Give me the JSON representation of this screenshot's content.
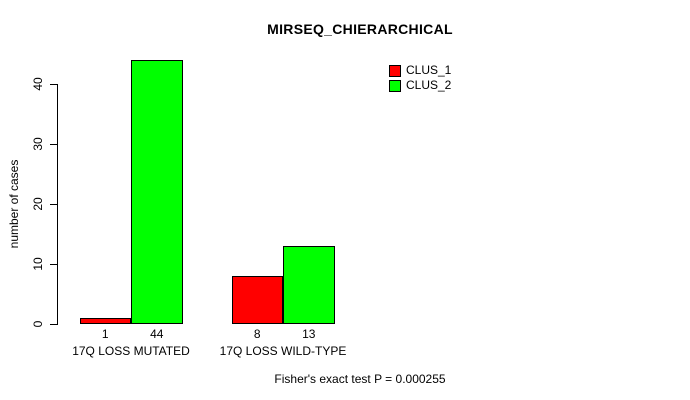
{
  "chart": {
    "title": "MIRSEQ_CHIERARCHICAL",
    "ylabel": "number of cases",
    "footer": "Fisher's exact test P = 0.000255"
  },
  "legend": {
    "items": [
      {
        "label": "CLUS_1",
        "color": "#FF0000"
      },
      {
        "label": "CLUS_2",
        "color": "#00FF00"
      }
    ]
  },
  "chart_data": {
    "type": "bar",
    "title": "MIRSEQ_CHIERARCHICAL",
    "xlabel": "",
    "ylabel": "number of cases",
    "categories": [
      "17Q LOSS MUTATED",
      "17Q LOSS WILD-TYPE"
    ],
    "series": [
      {
        "name": "CLUS_1",
        "color": "#FF0000",
        "values": [
          1,
          8
        ]
      },
      {
        "name": "CLUS_2",
        "color": "#00FF00",
        "values": [
          44,
          13
        ]
      }
    ],
    "bar_value_labels": [
      [
        "1",
        "8"
      ],
      [
        "44",
        "13"
      ]
    ],
    "ylim": [
      0,
      44
    ],
    "yticks": [
      0,
      10,
      20,
      30,
      40
    ],
    "grid": false,
    "legend_position": "top-right",
    "annotation": "Fisher's exact test P = 0.000255",
    "bar_border_color": "#000000"
  }
}
